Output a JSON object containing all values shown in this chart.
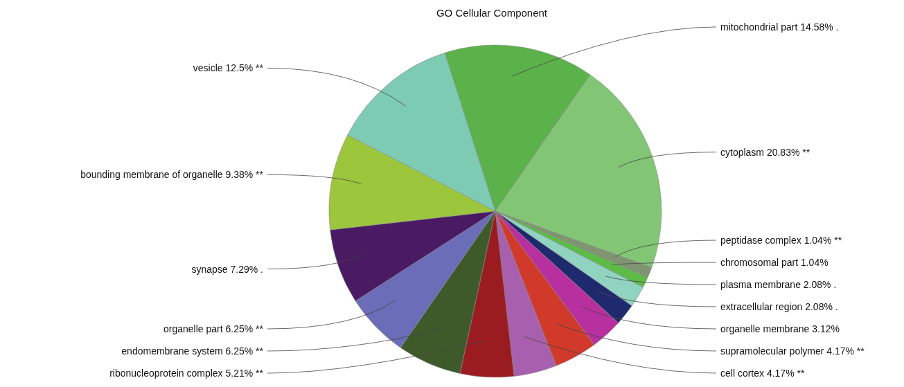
{
  "chart_data": {
    "type": "pie",
    "title": "GO Cellular Component",
    "categories": [
      "mitochondrial part",
      "cytoplasm",
      "peptidase complex",
      "chromosomal part",
      "plasma membrane",
      "extracellular region",
      "organelle membrane",
      "supramolecular polymer",
      "cell cortex",
      "ribonucleoprotein complex",
      "endomembrane system",
      "organelle part",
      "synapse",
      "bounding membrane of organelle",
      "vesicle"
    ],
    "values": [
      14.58,
      20.83,
      1.04,
      1.04,
      2.08,
      2.08,
      3.12,
      4.17,
      4.17,
      5.21,
      6.25,
      6.25,
      7.29,
      9.38,
      12.5
    ],
    "value_labels": [
      "14.58% .",
      "20.83% **",
      "1.04% **",
      "1.04%",
      "2.08% .",
      "2.08% .",
      "3.12%",
      "4.17% **",
      "4.17% **",
      "5.21% **",
      "6.25% **",
      "6.25% **",
      "7.29% .",
      "9.38% **",
      "12.5% **"
    ],
    "colors": [
      "#5bb24a",
      "#82c675",
      "#7f9470",
      "#5dbb47",
      "#8fd3c0",
      "#1f2a6e",
      "#b830a0",
      "#d13a2a",
      "#a860ae",
      "#9b1c20",
      "#3f5a2a",
      "#6b6db8",
      "#4a1a63",
      "#9cc73c",
      "#7ecbb3"
    ],
    "data_labels": true
  }
}
